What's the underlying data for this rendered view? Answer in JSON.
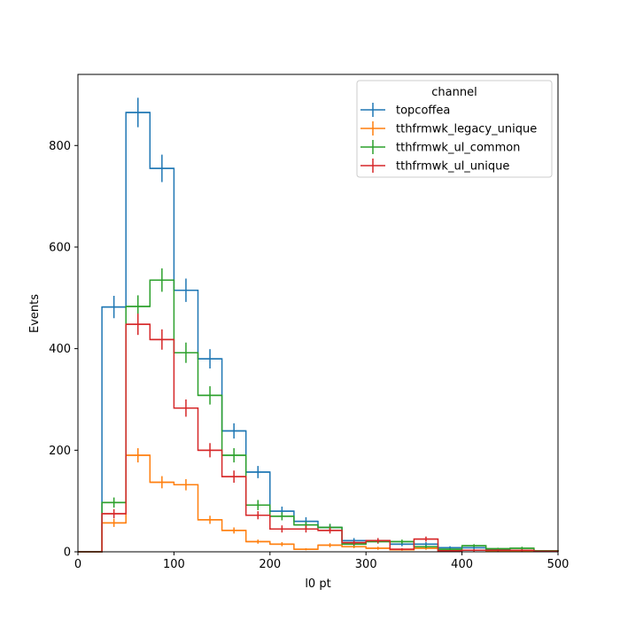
{
  "chart_data": {
    "type": "histogram",
    "xlabel": "l0 pt",
    "ylabel": "Events",
    "xlim": [
      0,
      500
    ],
    "ylim": [
      0,
      940
    ],
    "xticks": [
      0,
      100,
      200,
      300,
      400,
      500
    ],
    "yticks": [
      0,
      200,
      400,
      600,
      800
    ],
    "grid": false,
    "legend": {
      "title": "channel",
      "location": "top-right"
    },
    "bin_edges": [
      0,
      25,
      50,
      75,
      100,
      125,
      150,
      175,
      200,
      225,
      250,
      275,
      300,
      325,
      350,
      375,
      400,
      425,
      450,
      475,
      500
    ],
    "series": [
      {
        "name": "topcoffea",
        "color": "#1f77b4",
        "values": [
          0,
          482,
          865,
          755,
          515,
          380,
          238,
          157,
          80,
          60,
          48,
          22,
          22,
          15,
          15,
          8,
          8,
          5,
          3,
          2
        ],
        "errors": [
          0,
          22,
          29,
          27,
          23,
          19,
          15,
          12,
          9,
          8,
          7,
          5,
          5,
          4,
          4,
          3,
          3,
          2,
          2,
          1
        ]
      },
      {
        "name": "tthfrmwk_legacy_unique",
        "color": "#ff7f0e",
        "values": [
          0,
          57,
          190,
          137,
          132,
          63,
          42,
          20,
          15,
          5,
          13,
          10,
          7,
          4,
          7,
          2,
          3,
          2,
          2,
          1
        ],
        "errors": [
          0,
          8,
          14,
          12,
          11,
          8,
          6,
          4,
          4,
          2,
          4,
          3,
          3,
          2,
          3,
          1,
          2,
          1,
          1,
          1
        ]
      },
      {
        "name": "tthfrmwk_ul_common",
        "color": "#2ca02c",
        "values": [
          0,
          97,
          483,
          535,
          392,
          308,
          190,
          92,
          70,
          53,
          48,
          15,
          20,
          20,
          10,
          5,
          12,
          6,
          7,
          2
        ],
        "errors": [
          0,
          10,
          22,
          23,
          20,
          18,
          14,
          10,
          8,
          7,
          7,
          4,
          4,
          4,
          3,
          2,
          3,
          2,
          3,
          1
        ]
      },
      {
        "name": "tthfrmwk_ul_unique",
        "color": "#d62728",
        "values": [
          0,
          75,
          448,
          418,
          283,
          200,
          148,
          72,
          45,
          45,
          42,
          18,
          22,
          5,
          25,
          2,
          3,
          3,
          3,
          1
        ],
        "errors": [
          0,
          9,
          21,
          20,
          17,
          14,
          12,
          8,
          7,
          7,
          6,
          4,
          5,
          2,
          5,
          1,
          2,
          2,
          2,
          1
        ]
      }
    ]
  }
}
